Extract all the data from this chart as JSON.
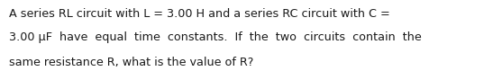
{
  "lines": [
    "A series RL circuit with L = 3.00 H and a series RC circuit with C =",
    "3.00 μF  have  equal  time  constants.  If  the  two  circuits  contain  the",
    "same resistance R, what is the value of R?"
  ],
  "background_color": "#ffffff",
  "text_color": "#1a1a1a",
  "font_size": 9.2,
  "font_family": "DejaVu Sans",
  "fig_width": 5.37,
  "fig_height": 0.79,
  "dpi": 100
}
